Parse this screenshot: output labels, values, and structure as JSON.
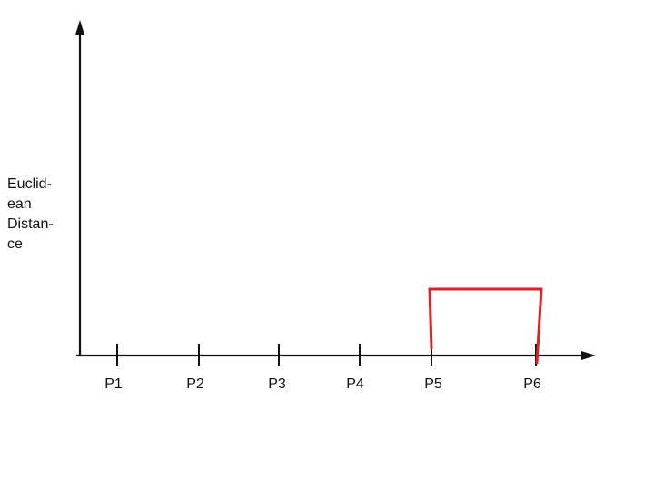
{
  "diagram": {
    "y_label_lines": [
      "Euclid-",
      "ean",
      "Distan-",
      "ce"
    ],
    "points": [
      "P1",
      "P2",
      "P3",
      "P4",
      "P5",
      "P6"
    ],
    "colors": {
      "axis": "#111111",
      "merge_link": "#dd2222"
    },
    "merges": [
      {
        "left": "P5",
        "right": "P6"
      }
    ]
  }
}
